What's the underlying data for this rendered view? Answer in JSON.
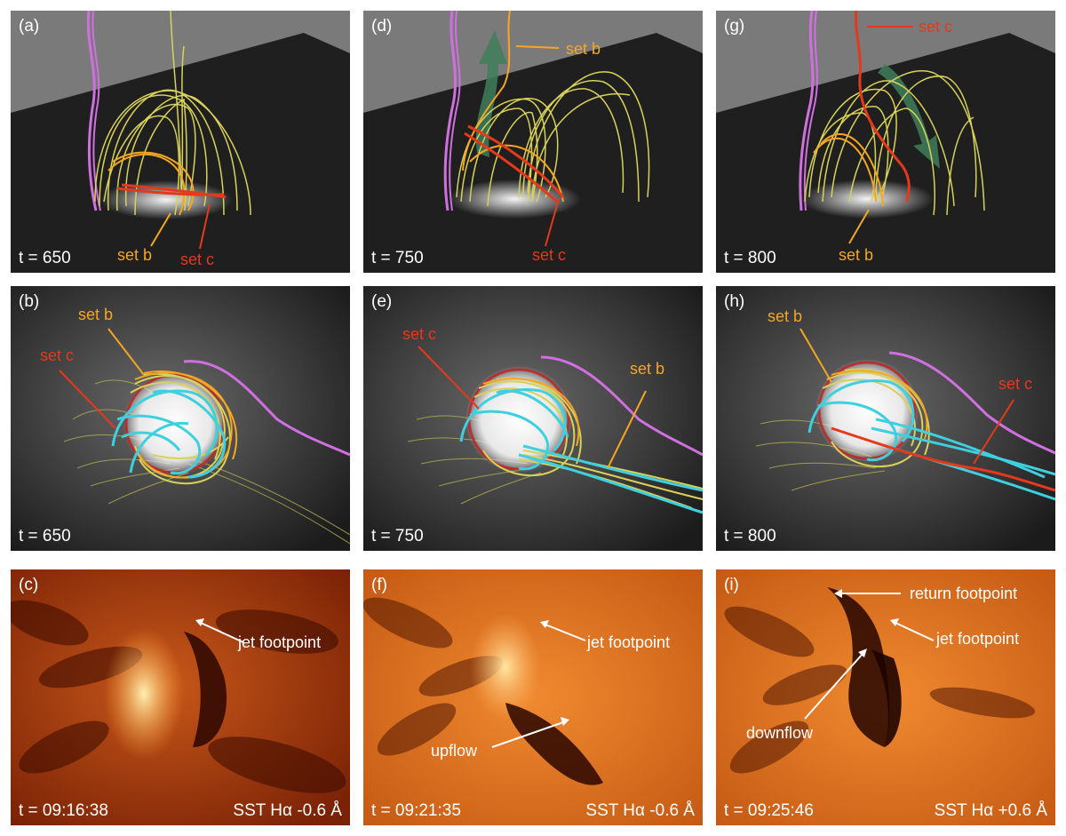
{
  "colors": {
    "set_b": "#f5a623",
    "set_c": "#e5391c",
    "field_lines": "#d8d25a",
    "spine": "#d070e0",
    "cyan_lines": "#3fd0e0",
    "flow_arrow": "#3f7f5a"
  },
  "panels": [
    {
      "tag": "(a)",
      "time": "t = 650",
      "labels": {
        "b": "set b",
        "c": "set c"
      }
    },
    {
      "tag": "(d)",
      "time": "t = 750",
      "labels": {
        "b": "set b",
        "c": "set c"
      }
    },
    {
      "tag": "(g)",
      "time": "t = 800",
      "labels": {
        "b": "set b",
        "c": "set c"
      }
    },
    {
      "tag": "(b)",
      "time": "t = 650",
      "labels": {
        "b": "set b",
        "c": "set c"
      }
    },
    {
      "tag": "(e)",
      "time": "t = 750",
      "labels": {
        "b": "set b",
        "c": "set c"
      }
    },
    {
      "tag": "(h)",
      "time": "t = 800",
      "labels": {
        "b": "set b",
        "c": "set c"
      }
    },
    {
      "tag": "(c)",
      "time": "t = 09:16:38",
      "instrument": "SST Hα -0.6 Å",
      "annotations": [
        "jet footpoint"
      ]
    },
    {
      "tag": "(f)",
      "time": "t = 09:21:35",
      "instrument": "SST Hα -0.6 Å",
      "annotations": [
        "jet footpoint",
        "upflow"
      ]
    },
    {
      "tag": "(i)",
      "time": "t = 09:25:46",
      "instrument": "SST Hα +0.6 Å",
      "annotations": [
        "return footpoint",
        "jet footpoint",
        "downflow"
      ]
    }
  ]
}
